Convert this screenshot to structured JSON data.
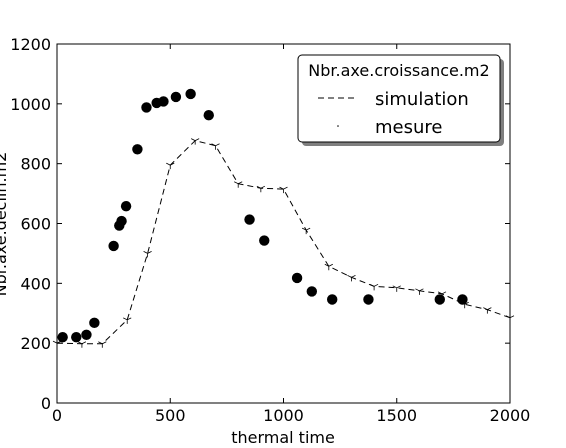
{
  "chart_data": {
    "type": "line",
    "title": "",
    "xlabel": "thermal time",
    "ylabel": "Nbr.axe.declin.m2",
    "xlim": [
      0,
      2000
    ],
    "ylim": [
      0,
      1200
    ],
    "x_ticks": [
      "0",
      "500",
      "1000",
      "1500",
      "2000"
    ],
    "y_ticks": [
      "0",
      "200",
      "400",
      "600",
      "800",
      "1000",
      "1200"
    ],
    "grid": false,
    "legend": {
      "title": "Nbr.axe.croissance.m2",
      "placement": "top-right",
      "entries": [
        "simulation",
        "mesure"
      ]
    },
    "series": [
      {
        "name": "simulation",
        "style": "dashed line with tick markers",
        "color": "#000000",
        "x": [
          0,
          110,
          200,
          310,
          400,
          500,
          610,
          700,
          800,
          900,
          1000,
          1100,
          1200,
          1300,
          1400,
          1500,
          1600,
          1700,
          1800,
          1900,
          2000
        ],
        "y": [
          200,
          198,
          198,
          278,
          500,
          795,
          877,
          860,
          733,
          718,
          715,
          578,
          457,
          420,
          390,
          385,
          375,
          365,
          330,
          312,
          285
        ]
      },
      {
        "name": "Nbr.axe.declin.m2",
        "style": "filled circles",
        "color": "#000000",
        "x": [
          25,
          85,
          130,
          165,
          250,
          275,
          285,
          305,
          355,
          395,
          440,
          470,
          525,
          590,
          670,
          850,
          915,
          1060,
          1125,
          1215,
          1375,
          1690,
          1790
        ],
        "y": [
          220,
          220,
          228,
          268,
          525,
          593,
          608,
          658,
          848,
          988,
          1003,
          1008,
          1023,
          1033,
          962,
          613,
          543,
          418,
          373,
          346,
          346,
          346,
          346
        ]
      }
    ]
  }
}
